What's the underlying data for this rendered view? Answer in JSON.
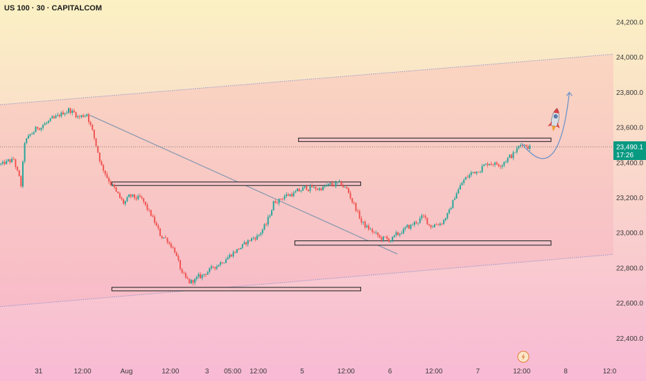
{
  "chart_data": {
    "type": "candlestick",
    "title": "US 100 · 30 · CAPITALCOM",
    "y_ticks": [
      22400,
      22600,
      22800,
      23000,
      23200,
      23400,
      23600,
      23800,
      24000,
      24200
    ],
    "y_tick_labels": [
      "22,400.0",
      "22,600.0",
      "22,800.0",
      "23,000.0",
      "23,200.0",
      "23,400.0",
      "23,600.0",
      "23,800.0",
      "24,000.0",
      "24,200.0"
    ],
    "ylim": [
      22300,
      24300
    ],
    "x_ticks": [
      {
        "label": "31",
        "bar": 10
      },
      {
        "label": "12:00",
        "bar": 22
      },
      {
        "label": "Aug",
        "bar": 34
      },
      {
        "label": "12:00",
        "bar": 46
      },
      {
        "label": "3",
        "bar": 56
      },
      {
        "label": "05:00",
        "bar": 63
      },
      {
        "label": "12:00",
        "bar": 70
      },
      {
        "label": "5",
        "bar": 82
      },
      {
        "label": "12:00",
        "bar": 94
      },
      {
        "label": "6",
        "bar": 106
      },
      {
        "label": "12:00",
        "bar": 118
      },
      {
        "label": "7",
        "bar": 130
      },
      {
        "label": "12:00",
        "bar": 142
      },
      {
        "label": "8",
        "bar": 154
      },
      {
        "label": "12:0",
        "bar": 166
      }
    ],
    "current_price": 23490.1,
    "current_price_label": "23,490.1",
    "countdown": "17:26",
    "colors": {
      "up": "#26a69a",
      "down": "#ef5350",
      "bg_top": "#fbf1c4",
      "bg_bottom": "#f8b9d4",
      "channel": "#7a87c9",
      "trendline": "#8a9ab0",
      "zone_fill": "#f3c2c8",
      "zone_stroke": "#2b2b2b",
      "arrow": "#6c93c9",
      "price_badge": "#089981"
    },
    "channel_lines": [
      {
        "p1": {
          "bar": 0,
          "price": 23730
        },
        "p2": {
          "bar": 166,
          "price": 24015
        }
      },
      {
        "p1": {
          "bar": 0,
          "price": 22580
        },
        "p2": {
          "bar": 166,
          "price": 22875
        }
      }
    ],
    "trend_line": {
      "p1": {
        "bar": 24,
        "price": 23670
      },
      "p2": {
        "bar": 108,
        "price": 22880
      }
    },
    "zones": [
      {
        "from_bar": 30,
        "to_bar": 98,
        "top": 23290,
        "bottom": 23270
      },
      {
        "from_bar": 81,
        "to_bar": 150,
        "top": 23540,
        "bottom": 23520
      },
      {
        "from_bar": 80,
        "to_bar": 150,
        "top": 22955,
        "bottom": 22930
      },
      {
        "from_bar": 30,
        "to_bar": 98,
        "top": 22690,
        "bottom": 22670
      }
    ],
    "projection_arrow": {
      "from": {
        "bar": 142,
        "price": 23510
      },
      "via": {
        "bar": 152,
        "price": 23400
      },
      "to": {
        "bar": 155,
        "price": 23800
      }
    },
    "icons": [
      "rocket-icon",
      "lightning-icon"
    ],
    "anchors": [
      {
        "bar": 0,
        "price": 23390
      },
      {
        "bar": 3,
        "price": 23420
      },
      {
        "bar": 5,
        "price": 23270
      },
      {
        "bar": 6,
        "price": 23520
      },
      {
        "bar": 9,
        "price": 23590
      },
      {
        "bar": 14,
        "price": 23650
      },
      {
        "bar": 18,
        "price": 23700
      },
      {
        "bar": 21,
        "price": 23660
      },
      {
        "bar": 23,
        "price": 23680
      },
      {
        "bar": 25,
        "price": 23540
      },
      {
        "bar": 27,
        "price": 23380
      },
      {
        "bar": 29,
        "price": 23300
      },
      {
        "bar": 31,
        "price": 23230
      },
      {
        "bar": 33,
        "price": 23170
      },
      {
        "bar": 35,
        "price": 23210
      },
      {
        "bar": 38,
        "price": 23190
      },
      {
        "bar": 41,
        "price": 23080
      },
      {
        "bar": 43,
        "price": 22990
      },
      {
        "bar": 45,
        "price": 22960
      },
      {
        "bar": 47,
        "price": 22900
      },
      {
        "bar": 49,
        "price": 22760
      },
      {
        "bar": 51,
        "price": 22720
      },
      {
        "bar": 53,
        "price": 22740
      },
      {
        "bar": 56,
        "price": 22780
      },
      {
        "bar": 60,
        "price": 22840
      },
      {
        "bar": 64,
        "price": 22900
      },
      {
        "bar": 67,
        "price": 22950
      },
      {
        "bar": 70,
        "price": 22990
      },
      {
        "bar": 72,
        "price": 23050
      },
      {
        "bar": 74,
        "price": 23170
      },
      {
        "bar": 77,
        "price": 23210
      },
      {
        "bar": 80,
        "price": 23230
      },
      {
        "bar": 83,
        "price": 23260
      },
      {
        "bar": 86,
        "price": 23250
      },
      {
        "bar": 89,
        "price": 23270
      },
      {
        "bar": 92,
        "price": 23280
      },
      {
        "bar": 94,
        "price": 23250
      },
      {
        "bar": 96,
        "price": 23160
      },
      {
        "bar": 98,
        "price": 23060
      },
      {
        "bar": 101,
        "price": 23010
      },
      {
        "bar": 103,
        "price": 22970
      },
      {
        "bar": 106,
        "price": 22960
      },
      {
        "bar": 109,
        "price": 23010
      },
      {
        "bar": 112,
        "price": 23050
      },
      {
        "bar": 115,
        "price": 23090
      },
      {
        "bar": 117,
        "price": 23040
      },
      {
        "bar": 120,
        "price": 23060
      },
      {
        "bar": 122,
        "price": 23120
      },
      {
        "bar": 124,
        "price": 23230
      },
      {
        "bar": 126,
        "price": 23300
      },
      {
        "bar": 128,
        "price": 23340
      },
      {
        "bar": 130,
        "price": 23360
      },
      {
        "bar": 133,
        "price": 23400
      },
      {
        "bar": 136,
        "price": 23390
      },
      {
        "bar": 139,
        "price": 23440
      },
      {
        "bar": 141,
        "price": 23490
      },
      {
        "bar": 142,
        "price": 23510
      },
      {
        "bar": 144,
        "price": 23490
      }
    ]
  }
}
